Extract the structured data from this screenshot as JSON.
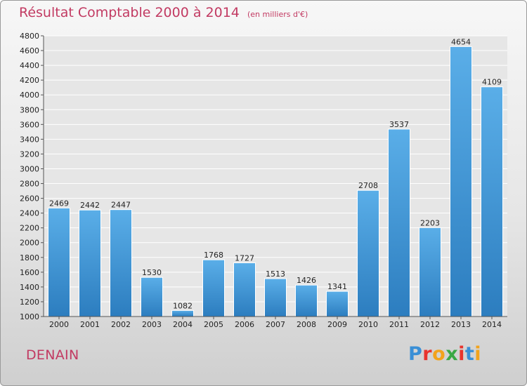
{
  "chart_data": {
    "type": "bar",
    "title": "Résultat Comptable 2000 à 2014",
    "subtitle": "(en milliers d'€)",
    "categories": [
      "2000",
      "2001",
      "2002",
      "2003",
      "2004",
      "2005",
      "2006",
      "2007",
      "2008",
      "2009",
      "2010",
      "2011",
      "2012",
      "2013",
      "2014"
    ],
    "values": [
      2469,
      2442,
      2447,
      1530,
      1082,
      1768,
      1727,
      1513,
      1426,
      1341,
      2708,
      3537,
      2203,
      4654,
      4109
    ],
    "ylim": [
      1000,
      4800
    ],
    "yticks": [
      "1000",
      "1200",
      "1400",
      "1600",
      "1800",
      "2000",
      "2200",
      "2400",
      "2600",
      "2800",
      "3000",
      "3200",
      "3400",
      "3600",
      "3800",
      "4000",
      "4200",
      "4400",
      "4600",
      "4800"
    ],
    "grid": true,
    "bar_color_top": "#5aaee8",
    "bar_color_bottom": "#2c7dbf"
  },
  "place": "DENAIN",
  "brand": "Proxiti",
  "colors": {
    "title": "#c23a62",
    "brand_letters": [
      "#3a8fd6",
      "#e8342e",
      "#f2a31c",
      "#3aa845",
      "#e8342e",
      "#3a8fd6",
      "#f2a31c"
    ]
  }
}
